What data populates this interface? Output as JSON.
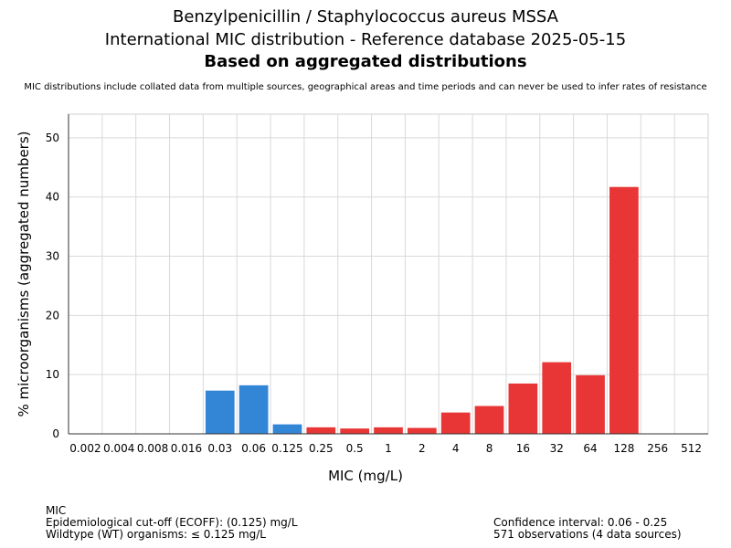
{
  "chart_data": {
    "type": "bar",
    "title": "Benzylpenicillin / Staphylococcus aureus MSSA",
    "subtitle": "International MIC distribution - Reference database 2025-05-15",
    "subtitle_bold": "Based on aggregated distributions",
    "note": "MIC distributions include collated data from multiple sources, geographical areas and time periods and can never be used to infer rates of resistance",
    "xlabel": "MIC (mg/L)",
    "ylabel": "% microorganisms (aggregated numbers)",
    "ylim": [
      0,
      54
    ],
    "yticks": [
      0,
      10,
      20,
      30,
      40,
      50
    ],
    "grid": true,
    "categories": [
      "0.002",
      "0.004",
      "0.008",
      "0.016",
      "0.03",
      "0.06",
      "0.125",
      "0.25",
      "0.5",
      "1",
      "2",
      "4",
      "8",
      "16",
      "32",
      "64",
      "128",
      "256",
      "512"
    ],
    "values": [
      0,
      0,
      0,
      0,
      7.3,
      8.2,
      1.6,
      1.1,
      0.9,
      1.1,
      1.0,
      3.6,
      4.7,
      8.5,
      12.1,
      9.9,
      41.7,
      0,
      0
    ],
    "colors": {
      "wildtype": "#3385d6",
      "non_wildtype": "#e83535"
    },
    "ecoff_value": 0.125
  },
  "footer": {
    "left": {
      "line1": "MIC",
      "line2": "Epidemiological cut-off (ECOFF): (0.125) mg/L",
      "line3": "Wildtype (WT) organisms: ≤ 0.125 mg/L"
    },
    "right": {
      "line1": "Confidence interval: 0.06 - 0.25",
      "line2": "571 observations (4 data sources)"
    }
  }
}
